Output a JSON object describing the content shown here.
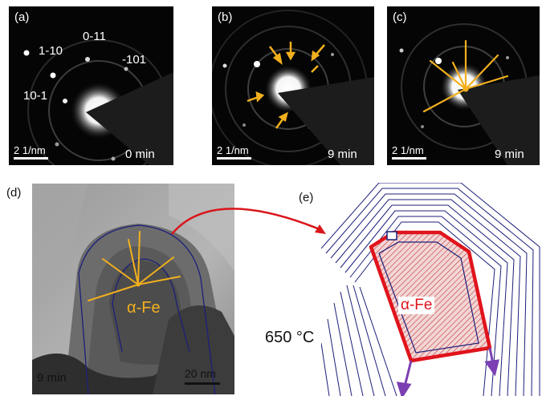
{
  "panels": {
    "a": {
      "label": "(a)",
      "time": "0 min",
      "scale": "2 1/nm",
      "indices": [
        "0-11",
        "1-10",
        "-101",
        "10-1"
      ]
    },
    "b": {
      "label": "(b)",
      "time": "9 min",
      "scale": "2 1/nm"
    },
    "c": {
      "label": "(c)",
      "time": "9 min",
      "scale": "2 1/nm"
    },
    "d": {
      "label": "(d)",
      "time": "9 min",
      "scale": "20 nm",
      "phase": "α-Fe"
    },
    "e": {
      "label": "(e)",
      "phase": "α-Fe"
    }
  },
  "temperature": "650 °C",
  "colors": {
    "highlight": "#f2b01e",
    "outline": "#1c1f7a",
    "core": "#e0141c",
    "growth_arrow": "#7b3fb3",
    "transfer_arrow": "#d9161b"
  }
}
